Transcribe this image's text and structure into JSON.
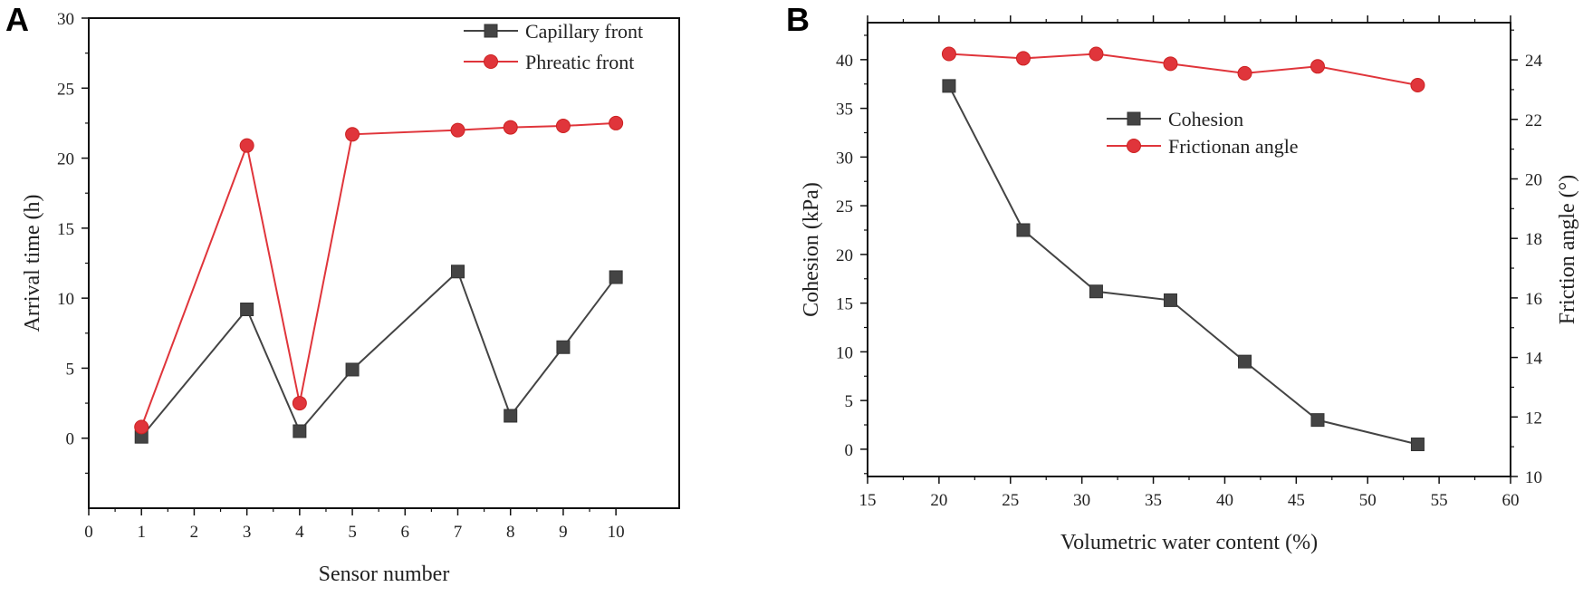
{
  "chart_data": [
    {
      "panel_label": "A",
      "type": "line",
      "title": "",
      "xlabel": "Sensor number",
      "ylabel": "Arrival time (h)",
      "xlim": [
        0,
        11.2
      ],
      "ylim": [
        -5,
        30
      ],
      "xticks": [
        0,
        1,
        2,
        3,
        4,
        5,
        6,
        7,
        8,
        9,
        10
      ],
      "yticks": [
        0,
        5,
        10,
        15,
        20,
        25,
        30
      ],
      "grid": false,
      "legend_position": "top-right",
      "series": [
        {
          "name": "Capillary front",
          "color": "#444444",
          "marker": "square",
          "x": [
            1,
            3,
            4,
            5,
            7,
            8,
            9,
            10
          ],
          "y": [
            0.1,
            9.2,
            0.5,
            4.9,
            11.9,
            1.6,
            6.5,
            11.5
          ]
        },
        {
          "name": "Phreatic front",
          "color": "#e0353b",
          "marker": "circle",
          "x": [
            1,
            3,
            4,
            5,
            7,
            8,
            9,
            10
          ],
          "y": [
            0.8,
            20.9,
            2.5,
            21.7,
            22.0,
            22.2,
            22.3,
            22.5
          ]
        }
      ]
    },
    {
      "panel_label": "B",
      "type": "line",
      "title": "",
      "xlabel": "Volumetric water content (%)",
      "ylabel": "Cohesion (kPa)",
      "y2label": "Friction angle (°)",
      "xlim": [
        15,
        60
      ],
      "ylim": [
        -2.8,
        43.8
      ],
      "y2lim": [
        10,
        25.25
      ],
      "xticks": [
        15,
        20,
        25,
        30,
        35,
        40,
        45,
        50,
        55,
        60
      ],
      "yticks": [
        0,
        5,
        10,
        15,
        20,
        25,
        30,
        35,
        40
      ],
      "y2ticks": [
        10,
        12,
        14,
        16,
        18,
        20,
        22,
        24
      ],
      "grid": false,
      "legend_position": "upper-right",
      "series": [
        {
          "name": "Cohesion",
          "axis": "left",
          "color": "#444444",
          "marker": "square",
          "x": [
            20.7,
            25.9,
            31.0,
            36.2,
            41.4,
            46.5,
            53.5
          ],
          "y": [
            37.3,
            22.5,
            16.2,
            15.3,
            9.0,
            3.0,
            0.5
          ]
        },
        {
          "name": "Frictionan angle",
          "axis": "right",
          "color": "#e0353b",
          "marker": "circle",
          "x": [
            20.7,
            25.9,
            31.0,
            36.2,
            41.4,
            46.5,
            53.5
          ],
          "y": [
            24.2,
            24.05,
            24.2,
            23.87,
            23.55,
            23.78,
            23.15
          ]
        }
      ]
    }
  ]
}
